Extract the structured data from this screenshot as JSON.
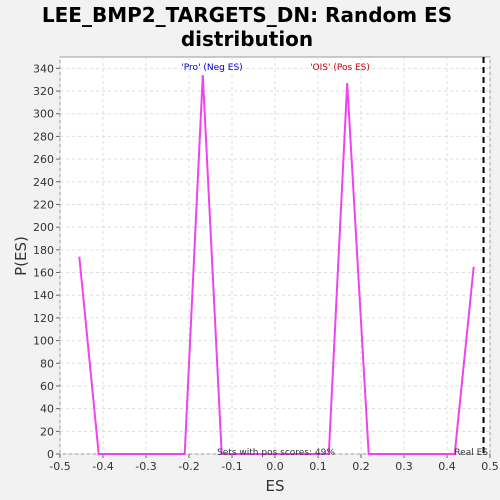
{
  "chart_data": {
    "type": "line",
    "title_line1": "LEE_BMP2_TARGETS_DN: Random ES",
    "title_line2": "distribution",
    "xlabel": "ES",
    "ylabel": "P(ES)",
    "xlim": [
      -0.5,
      0.5
    ],
    "ylim": [
      0,
      350
    ],
    "xticks": [
      "-0.5",
      "-0.4",
      "-0.3",
      "-0.2",
      "-0.1",
      "0.0",
      "0.1",
      "0.2",
      "0.3",
      "0.4",
      "0.5"
    ],
    "yticks": [
      "0",
      "20",
      "40",
      "60",
      "80",
      "100",
      "120",
      "140",
      "160",
      "180",
      "200",
      "220",
      "240",
      "260",
      "280",
      "300",
      "320",
      "340"
    ],
    "grid": true,
    "series": [
      {
        "color": "#ee44ee",
        "x": [
          -0.455,
          -0.41,
          -0.21,
          -0.168,
          -0.124,
          0.125,
          0.168,
          0.218,
          0.418,
          0.462
        ],
        "y": [
          174,
          0,
          0,
          334,
          0,
          0,
          327,
          0,
          0,
          165
        ]
      }
    ],
    "real_es": 0.485,
    "annotations": {
      "neg_label": "'Pro' (Neg ES)",
      "neg_color": "#0000cc",
      "pos_label": "'OIS' (Pos ES)",
      "pos_color": "#cc0000",
      "pos_scores": "Sets with pos scores: 49%",
      "real_es_label": "Real ES"
    }
  }
}
